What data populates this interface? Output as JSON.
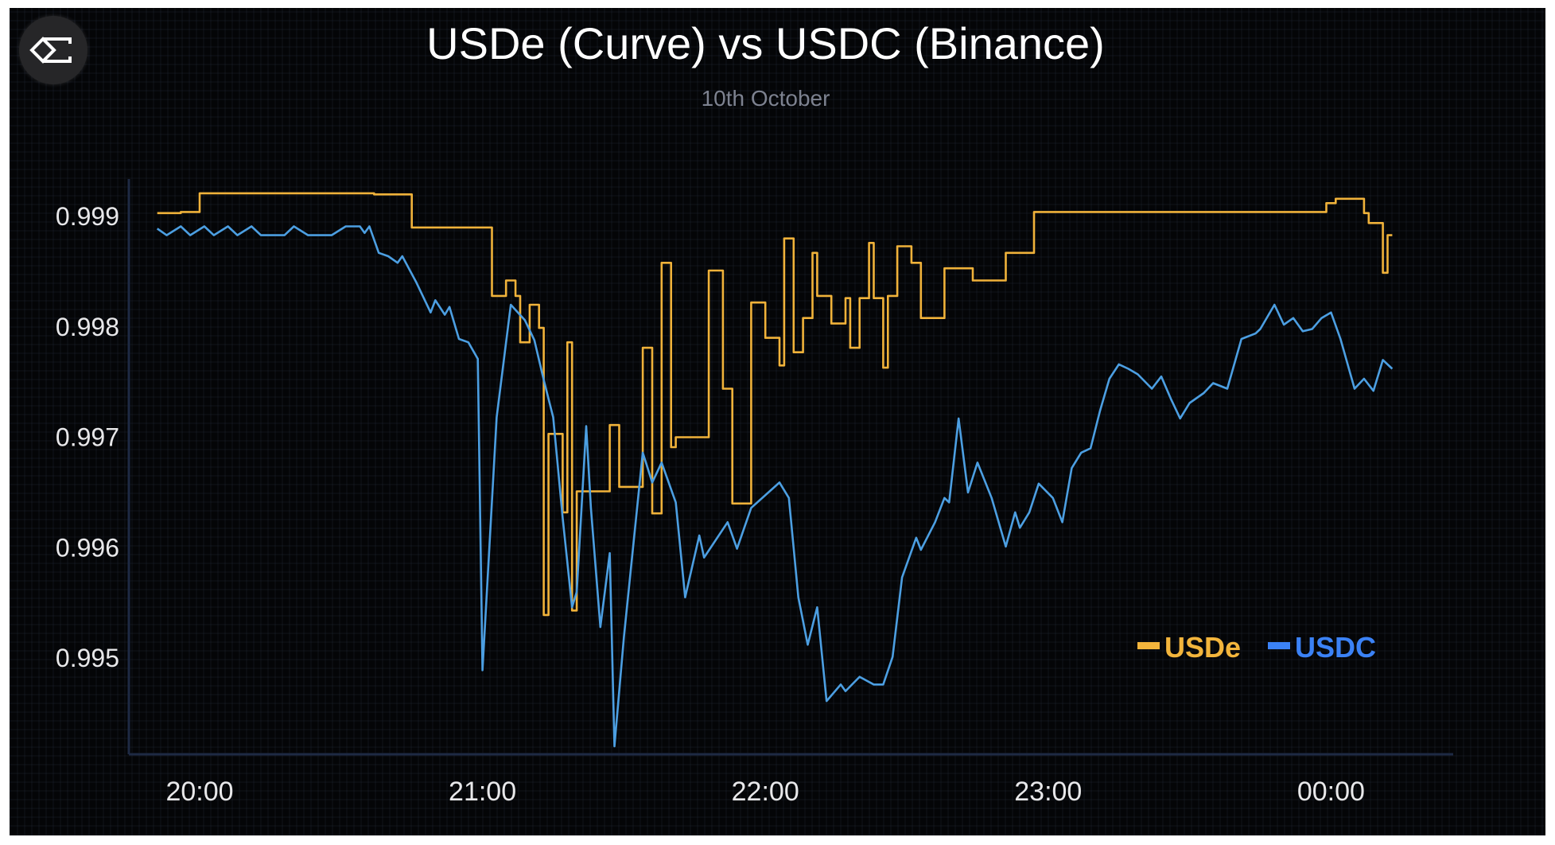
{
  "logo": {
    "icon": "sigma-diamond-logo-icon"
  },
  "chart_data": {
    "type": "line",
    "title": "USDe (Curve) vs USDC (Binance)",
    "subtitle": "10th October",
    "xlabel": "",
    "ylabel": "",
    "x_ticks": [
      "20:00",
      "21:00",
      "22:00",
      "23:00",
      "00:00"
    ],
    "y_ticks": [
      "0.999",
      "0.998",
      "0.997",
      "0.996",
      "0.995"
    ],
    "ylim": [
      0.9941,
      0.9995
    ],
    "xlim": [
      "19:46",
      "00:23"
    ],
    "grid": false,
    "legend_position": "bottom-right",
    "series": [
      {
        "name": "USDe",
        "color": "#f0b23a",
        "legend_color": "#f3b53c",
        "step": true,
        "points": [
          [
            "19:51",
            0.99903
          ],
          [
            "19:56",
            0.99904
          ],
          [
            "20:00",
            0.99921
          ],
          [
            "20:37",
            0.9992
          ],
          [
            "20:45",
            0.9989
          ],
          [
            "21:02",
            0.99828
          ],
          [
            "21:05",
            0.99842
          ],
          [
            "21:07",
            0.99828
          ],
          [
            "21:08",
            0.99786
          ],
          [
            "21:10",
            0.9982
          ],
          [
            "21:12",
            0.99799
          ],
          [
            "21:13",
            0.99539
          ],
          [
            "21:14",
            0.99703
          ],
          [
            "21:17",
            0.99632
          ],
          [
            "21:18",
            0.99786
          ],
          [
            "21:19",
            0.99543
          ],
          [
            "21:20",
            0.99651
          ],
          [
            "21:27",
            0.99711
          ],
          [
            "21:29",
            0.99655
          ],
          [
            "21:34",
            0.99781
          ],
          [
            "21:36",
            0.99631
          ],
          [
            "21:38",
            0.99858
          ],
          [
            "21:40",
            0.99691
          ],
          [
            "21:41",
            0.997
          ],
          [
            "21:48",
            0.99851
          ],
          [
            "21:51",
            0.99744
          ],
          [
            "21:53",
            0.9964
          ],
          [
            "21:57",
            0.99822
          ],
          [
            "22:00",
            0.9979
          ],
          [
            "22:03",
            0.99765
          ],
          [
            "22:04",
            0.9988
          ],
          [
            "22:06",
            0.99777
          ],
          [
            "22:08",
            0.99808
          ],
          [
            "22:10",
            0.99867
          ],
          [
            "22:11",
            0.99828
          ],
          [
            "22:14",
            0.99803
          ],
          [
            "22:17",
            0.99826
          ],
          [
            "22:18",
            0.99781
          ],
          [
            "22:20",
            0.99826
          ],
          [
            "22:22",
            0.99876
          ],
          [
            "22:23",
            0.99826
          ],
          [
            "22:25",
            0.99763
          ],
          [
            "22:26",
            0.99828
          ],
          [
            "22:28",
            0.99873
          ],
          [
            "22:31",
            0.99858
          ],
          [
            "22:33",
            0.99808
          ],
          [
            "22:38",
            0.99853
          ],
          [
            "22:44",
            0.99842
          ],
          [
            "22:51",
            0.99867
          ],
          [
            "22:57",
            0.99904
          ],
          [
            "23:59",
            0.99912
          ],
          [
            "00:01",
            0.99916
          ],
          [
            "00:07",
            0.99903
          ],
          [
            "00:08",
            0.99894
          ],
          [
            "00:11",
            0.99849
          ],
          [
            "00:12",
            0.99883
          ],
          [
            "00:13",
            0.99883
          ]
        ]
      },
      {
        "name": "USDC",
        "color": "#4c9fe2",
        "legend_color": "#3b82f6",
        "step": false,
        "points": [
          [
            "19:51",
            0.99889
          ],
          [
            "19:53",
            0.99883
          ],
          [
            "19:56",
            0.99891
          ],
          [
            "19:58",
            0.99883
          ],
          [
            "20:01",
            0.99891
          ],
          [
            "20:03",
            0.99883
          ],
          [
            "20:06",
            0.99891
          ],
          [
            "20:08",
            0.99883
          ],
          [
            "20:11",
            0.99891
          ],
          [
            "20:13",
            0.99883
          ],
          [
            "20:18",
            0.99883
          ],
          [
            "20:20",
            0.99891
          ],
          [
            "20:23",
            0.99883
          ],
          [
            "20:28",
            0.99883
          ],
          [
            "20:31",
            0.99891
          ],
          [
            "20:34",
            0.99891
          ],
          [
            "20:35",
            0.99885
          ],
          [
            "20:36",
            0.99891
          ],
          [
            "20:38",
            0.99867
          ],
          [
            "20:40",
            0.99864
          ],
          [
            "20:42",
            0.99858
          ],
          [
            "20:43",
            0.99864
          ],
          [
            "20:46",
            0.9984
          ],
          [
            "20:49",
            0.99813
          ],
          [
            "20:50",
            0.99824
          ],
          [
            "20:52",
            0.99811
          ],
          [
            "20:53",
            0.99818
          ],
          [
            "20:55",
            0.99789
          ],
          [
            "20:57",
            0.99786
          ],
          [
            "20:59",
            0.99771
          ],
          [
            "21:00",
            0.99489
          ],
          [
            "21:03",
            0.99718
          ],
          [
            "21:06",
            0.9982
          ],
          [
            "21:09",
            0.99806
          ],
          [
            "21:11",
            0.99788
          ],
          [
            "21:13",
            0.99752
          ],
          [
            "21:15",
            0.99718
          ],
          [
            "21:17",
            0.99627
          ],
          [
            "21:19",
            0.99546
          ],
          [
            "21:20",
            0.9956
          ],
          [
            "21:22",
            0.9971
          ],
          [
            "21:23",
            0.99636
          ],
          [
            "21:25",
            0.99528
          ],
          [
            "21:27",
            0.99595
          ],
          [
            "21:28",
            0.9942
          ],
          [
            "21:30",
            0.99519
          ],
          [
            "21:34",
            0.99686
          ],
          [
            "21:36",
            0.99659
          ],
          [
            "21:38",
            0.99677
          ],
          [
            "21:41",
            0.99641
          ],
          [
            "21:43",
            0.99555
          ],
          [
            "21:46",
            0.99611
          ],
          [
            "21:47",
            0.99591
          ],
          [
            "21:52",
            0.99623
          ],
          [
            "21:54",
            0.99599
          ],
          [
            "21:57",
            0.99636
          ],
          [
            "22:03",
            0.99659
          ],
          [
            "22:05",
            0.99645
          ],
          [
            "22:07",
            0.99555
          ],
          [
            "22:09",
            0.99512
          ],
          [
            "22:11",
            0.99546
          ],
          [
            "22:13",
            0.99461
          ],
          [
            "22:16",
            0.99476
          ],
          [
            "22:17",
            0.9947
          ],
          [
            "22:20",
            0.99483
          ],
          [
            "22:23",
            0.99476
          ],
          [
            "22:25",
            0.99476
          ],
          [
            "22:27",
            0.99501
          ],
          [
            "22:29",
            0.99573
          ],
          [
            "22:32",
            0.99609
          ],
          [
            "22:33",
            0.99598
          ],
          [
            "22:36",
            0.99623
          ],
          [
            "22:38",
            0.99645
          ],
          [
            "22:39",
            0.99641
          ],
          [
            "22:41",
            0.99717
          ],
          [
            "22:43",
            0.9965
          ],
          [
            "22:45",
            0.99677
          ],
          [
            "22:48",
            0.99645
          ],
          [
            "22:51",
            0.99601
          ],
          [
            "22:53",
            0.99632
          ],
          [
            "22:54",
            0.99618
          ],
          [
            "22:56",
            0.99632
          ],
          [
            "22:58",
            0.99658
          ],
          [
            "23:01",
            0.99645
          ],
          [
            "23:03",
            0.99623
          ],
          [
            "23:05",
            0.99672
          ],
          [
            "23:07",
            0.99686
          ],
          [
            "23:09",
            0.9969
          ],
          [
            "23:11",
            0.99724
          ],
          [
            "23:13",
            0.99753
          ],
          [
            "23:15",
            0.99766
          ],
          [
            "23:17",
            0.99762
          ],
          [
            "23:19",
            0.99757
          ],
          [
            "23:22",
            0.99744
          ],
          [
            "23:24",
            0.99755
          ],
          [
            "23:26",
            0.99735
          ],
          [
            "23:28",
            0.99717
          ],
          [
            "23:30",
            0.99731
          ],
          [
            "23:33",
            0.9974
          ],
          [
            "23:35",
            0.99749
          ],
          [
            "23:38",
            0.99744
          ],
          [
            "23:41",
            0.99789
          ],
          [
            "23:44",
            0.99794
          ],
          [
            "23:45",
            0.99798
          ],
          [
            "23:48",
            0.9982
          ],
          [
            "23:50",
            0.99802
          ],
          [
            "23:52",
            0.99808
          ],
          [
            "23:54",
            0.99796
          ],
          [
            "23:56",
            0.99798
          ],
          [
            "23:58",
            0.99808
          ],
          [
            "00:00",
            0.99813
          ],
          [
            "00:02",
            0.99789
          ],
          [
            "00:05",
            0.99744
          ],
          [
            "00:07",
            0.99753
          ],
          [
            "00:09",
            0.99742
          ],
          [
            "00:11",
            0.9977
          ],
          [
            "00:13",
            0.99762
          ]
        ]
      }
    ]
  }
}
